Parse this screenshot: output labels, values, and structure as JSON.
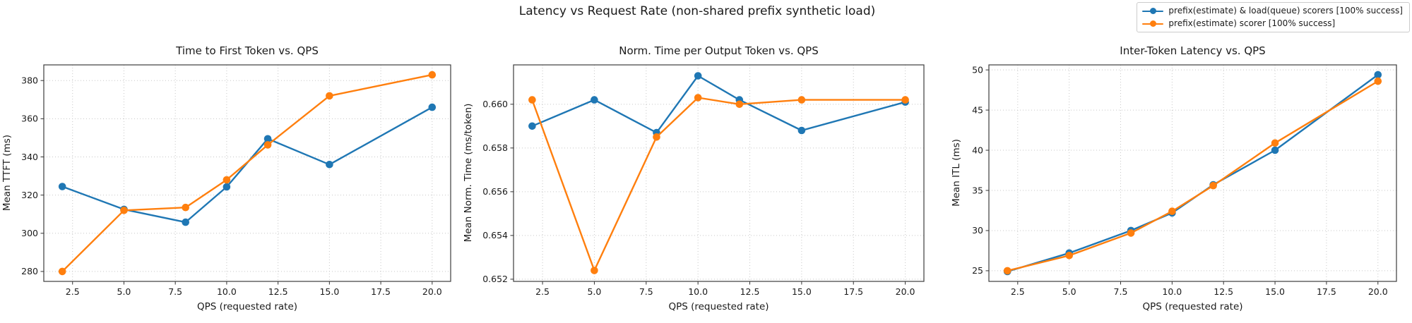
{
  "figure": {
    "title": "Latency vs Request Rate (non-shared prefix synthetic load)",
    "background": "#ffffff",
    "text_color": "#1a1a1a"
  },
  "legend": {
    "position": "upper-right",
    "entries": [
      {
        "label": "prefix(estimate) & load(queue) scorers [100% success]",
        "color": "#1f77b4"
      },
      {
        "label": "prefix(estimate) scorer [100% success]",
        "color": "#ff7f0e"
      }
    ]
  },
  "chart_data": [
    {
      "type": "line",
      "title": "Time to First Token vs. QPS",
      "xlabel": "QPS (requested rate)",
      "ylabel": "Mean TTFT (ms)",
      "grid": true,
      "x": [
        2,
        5,
        8,
        10,
        12,
        15,
        20
      ],
      "series": [
        {
          "name": "prefix(estimate) & load(queue) scorers [100% success]",
          "color": "#1f77b4",
          "values": [
            324.5,
            312.5,
            305.8,
            324.3,
            349.5,
            336.0,
            366.0
          ]
        },
        {
          "name": "prefix(estimate) scorer [100% success]",
          "color": "#ff7f0e",
          "values": [
            280.0,
            312.0,
            313.5,
            328.0,
            346.3,
            372.0,
            383.0
          ]
        }
      ],
      "xlim": [
        1.1,
        20.9
      ],
      "ylim": [
        274.8,
        388.2
      ],
      "xticks": [
        2.5,
        5,
        7.5,
        10,
        12.5,
        15,
        17.5,
        20
      ],
      "xtick_labels": [
        "2.5",
        "5.0",
        "7.5",
        "10.0",
        "12.5",
        "15.0",
        "17.5",
        "20.0"
      ],
      "yticks": [
        280,
        300,
        320,
        340,
        360,
        380
      ],
      "ytick_labels": [
        "280",
        "300",
        "320",
        "340",
        "360",
        "380"
      ]
    },
    {
      "type": "line",
      "title": "Norm. Time per Output Token vs. QPS",
      "xlabel": "QPS (requested rate)",
      "ylabel": "Mean Norm. Time (ms/token)",
      "grid": true,
      "x": [
        2,
        5,
        8,
        10,
        12,
        15,
        20
      ],
      "series": [
        {
          "name": "prefix(estimate) & load(queue) scorers [100% success]",
          "color": "#1f77b4",
          "values": [
            0.659,
            0.6602,
            0.6587,
            0.6613,
            0.6602,
            0.6588,
            0.6601
          ]
        },
        {
          "name": "prefix(estimate) scorer [100% success]",
          "color": "#ff7f0e",
          "values": [
            0.6602,
            0.6524,
            0.6585,
            0.6603,
            0.66,
            0.6602,
            0.6602
          ]
        }
      ],
      "xlim": [
        1.1,
        20.9
      ],
      "ylim": [
        0.6519,
        0.6618
      ],
      "xticks": [
        2.5,
        5,
        7.5,
        10,
        12.5,
        15,
        17.5,
        20
      ],
      "xtick_labels": [
        "2.5",
        "5.0",
        "7.5",
        "10.0",
        "12.5",
        "15.0",
        "17.5",
        "20.0"
      ],
      "yticks": [
        0.652,
        0.654,
        0.656,
        0.658,
        0.66
      ],
      "ytick_labels": [
        "0.652",
        "0.654",
        "0.656",
        "0.658",
        "0.660"
      ]
    },
    {
      "type": "line",
      "title": "Inter-Token Latency vs. QPS",
      "xlabel": "QPS (requested rate)",
      "ylabel": "Mean ITL (ms)",
      "grid": true,
      "x": [
        2,
        5,
        8,
        10,
        12,
        15,
        20
      ],
      "series": [
        {
          "name": "prefix(estimate) & load(queue) scorers [100% success]",
          "color": "#1f77b4",
          "values": [
            24.9,
            27.2,
            30.0,
            32.2,
            35.7,
            40.0,
            49.4
          ]
        },
        {
          "name": "prefix(estimate) scorer [100% success]",
          "color": "#ff7f0e",
          "values": [
            25.0,
            26.9,
            29.7,
            32.4,
            35.6,
            40.9,
            48.6
          ]
        }
      ],
      "xlim": [
        1.1,
        20.9
      ],
      "ylim": [
        23.675,
        50.625
      ],
      "xticks": [
        2.5,
        5,
        7.5,
        10,
        12.5,
        15,
        17.5,
        20
      ],
      "xtick_labels": [
        "2.5",
        "5.0",
        "7.5",
        "10.0",
        "12.5",
        "15.0",
        "17.5",
        "20.0"
      ],
      "yticks": [
        25,
        30,
        35,
        40,
        45,
        50
      ],
      "ytick_labels": [
        "25",
        "30",
        "35",
        "40",
        "45",
        "50"
      ]
    }
  ]
}
